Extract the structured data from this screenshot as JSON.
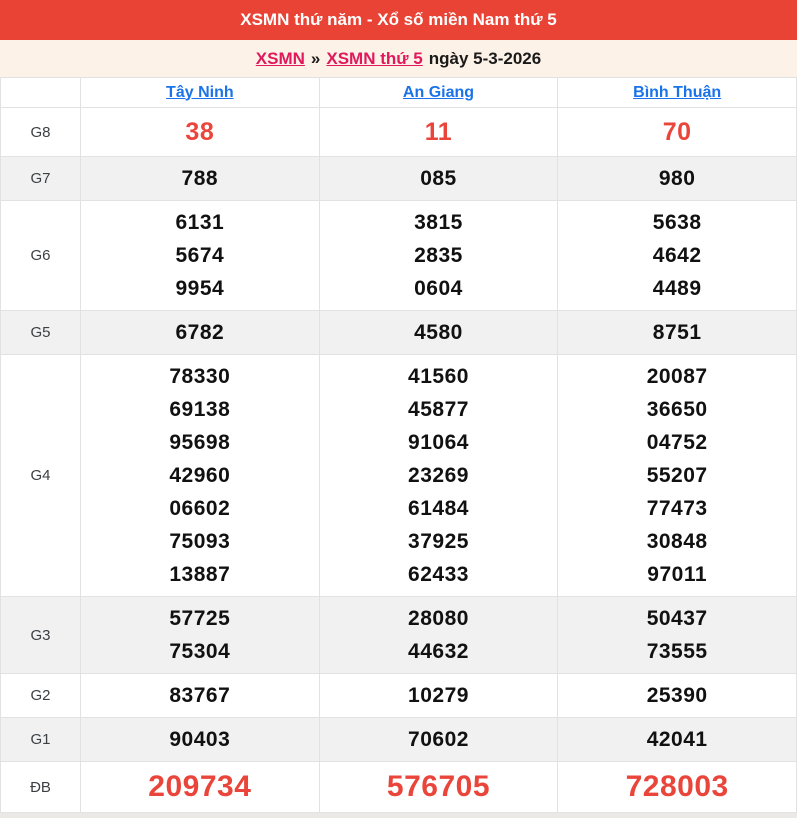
{
  "banner": {
    "title": "XSMN thứ năm - Xổ số miền Nam thứ 5"
  },
  "breadcrumb": {
    "link1": "XSMN",
    "separator": "»",
    "link2": "XSMN thứ 5",
    "suffix": "ngày 5-3-2026"
  },
  "columns": [
    "Tây Ninh",
    "An Giang",
    "Bình Thuận"
  ],
  "rows": [
    {
      "label": "G8",
      "emphasis": "red",
      "values": [
        [
          "38"
        ],
        [
          "11"
        ],
        [
          "70"
        ]
      ]
    },
    {
      "label": "G7",
      "emphasis": "normal",
      "values": [
        [
          "788"
        ],
        [
          "085"
        ],
        [
          "980"
        ]
      ]
    },
    {
      "label": "G6",
      "emphasis": "normal",
      "values": [
        [
          "6131",
          "5674",
          "9954"
        ],
        [
          "3815",
          "2835",
          "0604"
        ],
        [
          "5638",
          "4642",
          "4489"
        ]
      ]
    },
    {
      "label": "G5",
      "emphasis": "normal",
      "values": [
        [
          "6782"
        ],
        [
          "4580"
        ],
        [
          "8751"
        ]
      ]
    },
    {
      "label": "G4",
      "emphasis": "normal",
      "values": [
        [
          "78330",
          "69138",
          "95698",
          "42960",
          "06602",
          "75093",
          "13887"
        ],
        [
          "41560",
          "45877",
          "91064",
          "23269",
          "61484",
          "37925",
          "62433"
        ],
        [
          "20087",
          "36650",
          "04752",
          "55207",
          "77473",
          "30848",
          "97011"
        ]
      ]
    },
    {
      "label": "G3",
      "emphasis": "normal",
      "values": [
        [
          "57725",
          "75304"
        ],
        [
          "28080",
          "44632"
        ],
        [
          "50437",
          "73555"
        ]
      ]
    },
    {
      "label": "G2",
      "emphasis": "normal",
      "values": [
        [
          "83767"
        ],
        [
          "10279"
        ],
        [
          "25390"
        ]
      ]
    },
    {
      "label": "G1",
      "emphasis": "normal",
      "values": [
        [
          "90403"
        ],
        [
          "70602"
        ],
        [
          "42041"
        ]
      ]
    },
    {
      "label": "ĐB",
      "emphasis": "jackpot",
      "values": [
        [
          "209734"
        ],
        [
          "576705"
        ],
        [
          "728003"
        ]
      ]
    }
  ],
  "colors": {
    "banner_bg": "#E94335",
    "banner_text": "#FFFFFF",
    "breadcrumb_bg": "#FDF2E7",
    "link_red": "#E0185C",
    "link_blue": "#1A73E8",
    "number_red": "#E9453B",
    "number_black": "#111111",
    "shaded_row_bg": "#F1F1F1",
    "border": "#E2E2E2"
  }
}
